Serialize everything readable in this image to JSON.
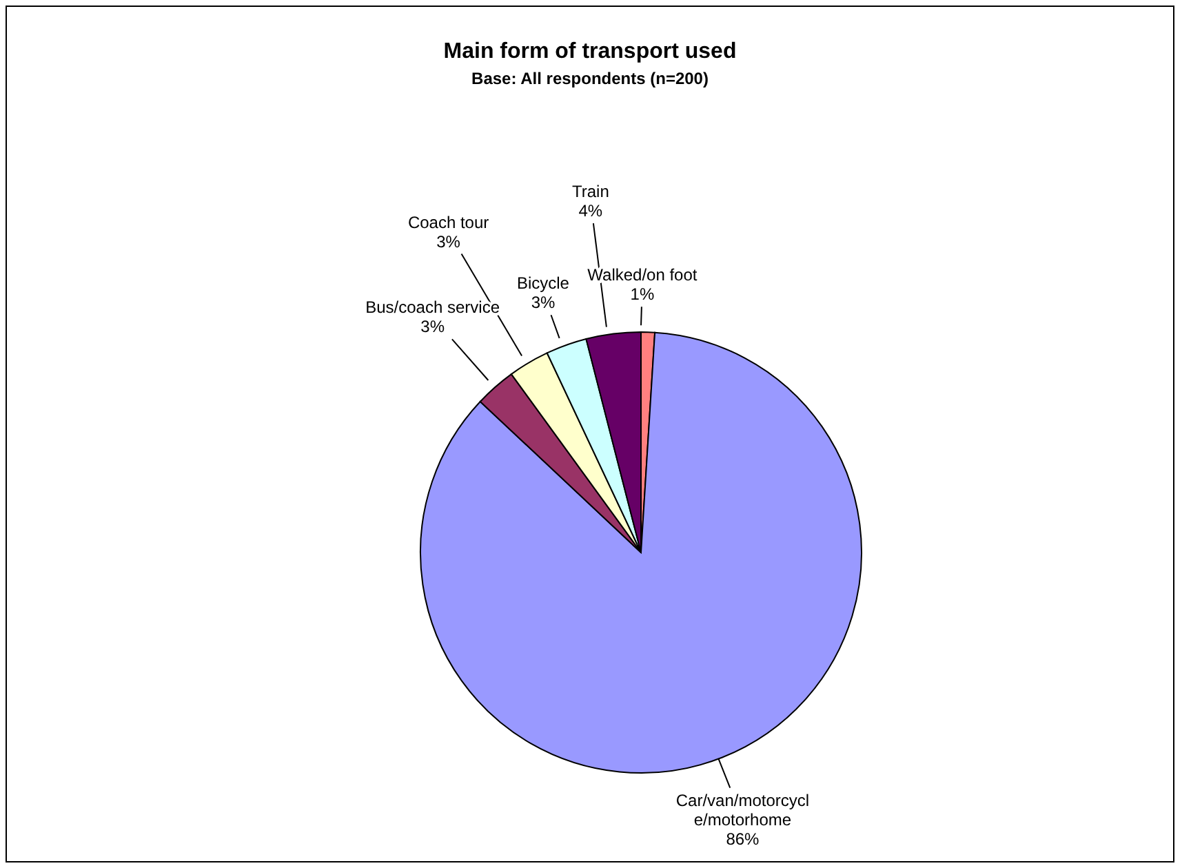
{
  "chart_data": {
    "type": "pie",
    "title": "Main form of transport used",
    "subtitle": "Base: All respondents (n=200)",
    "categories": [
      "Walked/on foot",
      "Car/van/motorcycle/motorhome",
      "Bus/coach service",
      "Coach tour",
      "Bicycle",
      "Train"
    ],
    "values": [
      1,
      86,
      3,
      3,
      3,
      4
    ],
    "value_labels": [
      "1%",
      "86%",
      "3%",
      "3%",
      "3%",
      "4%"
    ],
    "colors": [
      "#ff8080",
      "#9999ff",
      "#993366",
      "#ffffcc",
      "#ccffff",
      "#660066"
    ]
  }
}
